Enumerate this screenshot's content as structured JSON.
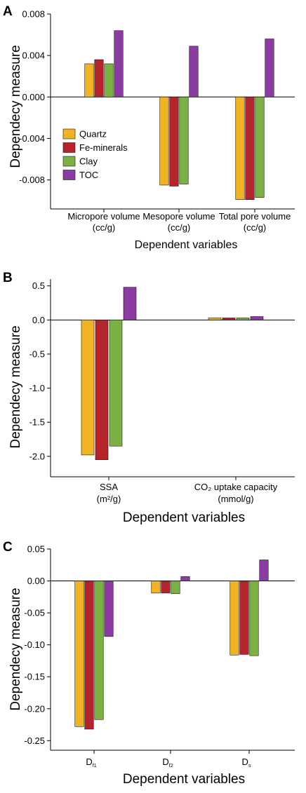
{
  "colors": {
    "Quartz": "#F0B323",
    "Fe-minerals": "#B5242B",
    "Clay": "#7BB043",
    "TOC": "#8B3BA1"
  },
  "chart_data": [
    {
      "type": "bar",
      "panel": "A",
      "ylabel": "Dependecy measure",
      "xlabel": "Dependent variables",
      "ylim": [
        -0.0108,
        0.008
      ],
      "yticks": [
        0.008,
        0.004,
        0.0,
        -0.004,
        -0.008
      ],
      "ytick_labels": [
        "0.008",
        "0.004",
        "0.000",
        "-0.004",
        "-0.008"
      ],
      "categories": [
        [
          "Micropore volume",
          "(cc/g)"
        ],
        [
          "Mesopore volume",
          "(cc/g)"
        ],
        [
          "Total pore volume",
          "(cc/g)"
        ]
      ],
      "series": [
        {
          "name": "Quartz",
          "values": [
            0.0032,
            -0.0085,
            -0.0099
          ]
        },
        {
          "name": "Fe-minerals",
          "values": [
            0.0036,
            -0.0086,
            -0.0099
          ]
        },
        {
          "name": "Clay",
          "values": [
            0.0032,
            -0.0084,
            -0.0097
          ]
        },
        {
          "name": "TOC",
          "values": [
            0.0064,
            0.0049,
            0.0056
          ]
        }
      ],
      "legend": "lower-left"
    },
    {
      "type": "bar",
      "panel": "B",
      "ylabel": "Dependecy measure",
      "xlabel": "Dependent variables",
      "ylim": [
        -2.3,
        0.6
      ],
      "yticks": [
        0.5,
        0.0,
        -0.5,
        -1.0,
        -1.5,
        -2.0
      ],
      "ytick_labels": [
        "0.5",
        "0.0",
        "-0.5",
        "-1.0",
        "-1.5",
        "-2.0"
      ],
      "categories": [
        [
          "SSA",
          "(m²/g)"
        ],
        [
          "CO₂ uptake capacity",
          "(mmol/g)"
        ]
      ],
      "series": [
        {
          "name": "Quartz",
          "values": [
            -1.98,
            0.03
          ]
        },
        {
          "name": "Fe-minerals",
          "values": [
            -2.05,
            0.03
          ]
        },
        {
          "name": "Clay",
          "values": [
            -1.85,
            0.03
          ]
        },
        {
          "name": "TOC",
          "values": [
            0.48,
            0.05
          ]
        }
      ]
    },
    {
      "type": "bar",
      "panel": "C",
      "ylabel": "Dependecy measure",
      "xlabel": "Dependent variables",
      "ylim": [
        -0.265,
        0.05
      ],
      "yticks": [
        0.05,
        0.0,
        -0.05,
        -0.1,
        -0.15,
        -0.2,
        -0.25
      ],
      "ytick_labels": [
        "0.05",
        "0.00",
        "-0.05",
        "-0.10",
        "-0.15",
        "-0.20",
        "-0.25"
      ],
      "categories": [
        [
          "D",
          "f1"
        ],
        [
          "D",
          "f2"
        ],
        [
          "D",
          "s"
        ]
      ],
      "series": [
        {
          "name": "Quartz",
          "values": [
            -0.228,
            -0.019,
            -0.116
          ]
        },
        {
          "name": "Fe-minerals",
          "values": [
            -0.232,
            -0.019,
            -0.115
          ]
        },
        {
          "name": "Clay",
          "values": [
            -0.217,
            -0.02,
            -0.117
          ]
        },
        {
          "name": "TOC",
          "values": [
            -0.087,
            0.007,
            0.033
          ]
        }
      ]
    }
  ]
}
